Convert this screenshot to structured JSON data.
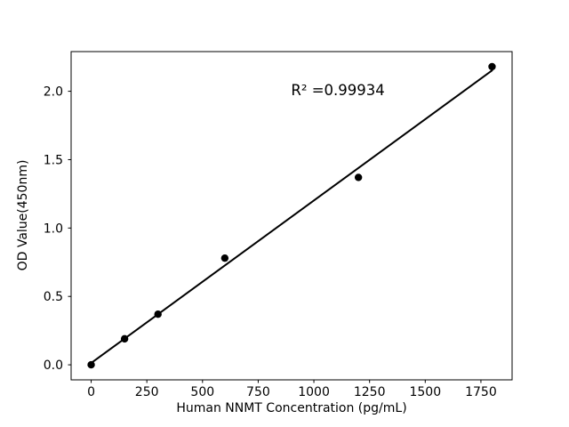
{
  "figure": {
    "background_color": "#ffffff",
    "foreground_color": "#000000"
  },
  "chart_data": {
    "type": "scatter",
    "title": "",
    "xlabel": "Human NNMT Concentration (pg/mL)",
    "ylabel": "OD Value(450nm)",
    "x": [
      0,
      150,
      300,
      600,
      1200,
      1800
    ],
    "y": [
      0.0,
      0.19,
      0.37,
      0.78,
      1.37,
      2.18
    ],
    "fit_line": {
      "x": [
        0,
        1800
      ],
      "y": [
        0.013,
        2.152
      ],
      "r_squared": 0.99934
    },
    "annotation": {
      "text": "R² =0.99934",
      "x": 1108,
      "y": 2.01
    },
    "xticks": [
      0,
      250,
      500,
      750,
      1000,
      1250,
      1500,
      1750
    ],
    "yticks": [
      0.0,
      0.5,
      1.0,
      1.5,
      2.0
    ],
    "xlim": [
      -90,
      1890
    ],
    "ylim": [
      -0.11,
      2.29
    ],
    "marker_color": "#000000",
    "marker_size": 4.2,
    "line_color": "#000000",
    "line_width": 2,
    "grid": false,
    "legend": null
  }
}
